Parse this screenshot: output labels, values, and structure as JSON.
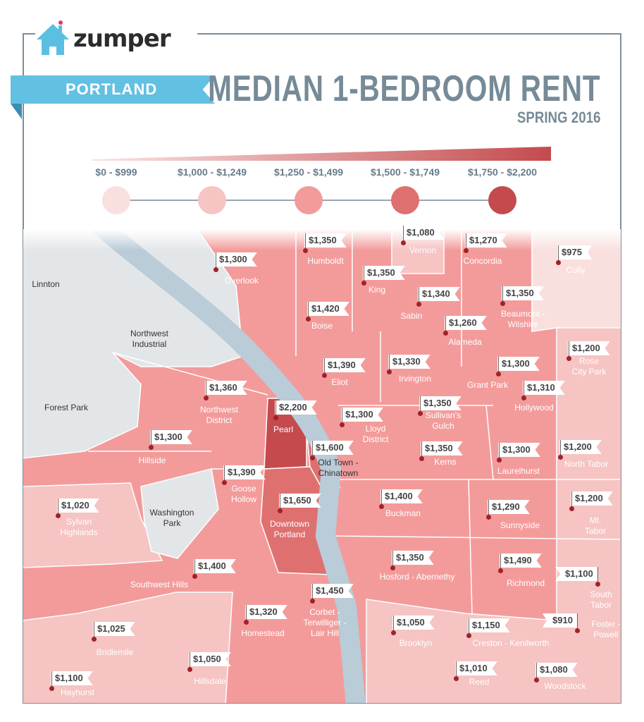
{
  "brand": {
    "name": "zumper"
  },
  "banner": {
    "city": "PORTLAND"
  },
  "header": {
    "title": "MEDIAN 1-BEDROOM RENT",
    "subtitle": "SPRING 2016"
  },
  "legend": [
    {
      "label": "$0 - $999",
      "color": "#f9e0df"
    },
    {
      "label": "$1,000 - $1,249",
      "color": "#f5c4c3"
    },
    {
      "label": "$1,250 - $1,499",
      "color": "#f39b9b"
    },
    {
      "label": "$1,500 - $1,749",
      "color": "#df7070"
    },
    {
      "label": "$1,750 - $2,200",
      "color": "#c44a4d"
    }
  ],
  "areas_without_data": [
    "Linnton",
    "Northwest\nIndustrial",
    "Forest Park",
    "Washington\nPark"
  ],
  "neighborhoods": [
    {
      "name": "Humboldt",
      "rent": "$1,350"
    },
    {
      "name": "Vernon",
      "rent": "$1,080"
    },
    {
      "name": "Concordia",
      "rent": "$1,270"
    },
    {
      "name": "Cully",
      "rent": "$975"
    },
    {
      "name": "Overlook",
      "rent": "$1,300"
    },
    {
      "name": "King",
      "rent": "$1,350"
    },
    {
      "name": "Sabin",
      "rent": "$1,340"
    },
    {
      "name": "Beaumont -\nWilshire",
      "rent": "$1,350"
    },
    {
      "name": "Boise",
      "rent": "$1,420"
    },
    {
      "name": "Alameda",
      "rent": "$1,260"
    },
    {
      "name": "Rose\nCity Park",
      "rent": "$1,200"
    },
    {
      "name": "Eliot",
      "rent": "$1,390"
    },
    {
      "name": "Irvington",
      "rent": "$1,330"
    },
    {
      "name": "Grant Park",
      "rent": "$1,300"
    },
    {
      "name": "Northwest\nDistrict",
      "rent": "$1,360"
    },
    {
      "name": "Hollywood",
      "rent": "$1,310"
    },
    {
      "name": "Pearl",
      "rent": "$2,200"
    },
    {
      "name": "Lloyd\nDistrict",
      "rent": "$1,300"
    },
    {
      "name": "Sullivan's\nGulch",
      "rent": "$1,350"
    },
    {
      "name": "Hillside",
      "rent": "$1,300"
    },
    {
      "name": "Old Town -\nChinatown",
      "rent": "$1,600"
    },
    {
      "name": "Kerns",
      "rent": "$1,350"
    },
    {
      "name": "Laurelhurst",
      "rent": "$1,300"
    },
    {
      "name": "North Tabor",
      "rent": "$1,200"
    },
    {
      "name": "Goose\nHollow",
      "rent": "$1,390"
    },
    {
      "name": "Downtown\nPortland",
      "rent": "$1,650"
    },
    {
      "name": "Sylvan\nHighlands",
      "rent": "$1,020"
    },
    {
      "name": "Buckman",
      "rent": "$1,400"
    },
    {
      "name": "Sunnyside",
      "rent": "$1,290"
    },
    {
      "name": "Mt.\nTabor",
      "rent": "$1,200"
    },
    {
      "name": "Southwest Hills",
      "rent": "$1,400"
    },
    {
      "name": "Hosford - Abernethy",
      "rent": "$1,350"
    },
    {
      "name": "Richmond",
      "rent": "$1,490"
    },
    {
      "name": "South\nTabor",
      "rent": "$1,100"
    },
    {
      "name": "Corbet -\nTerwilliger -\nLair Hill",
      "rent": "$1,450"
    },
    {
      "name": "Homestead",
      "rent": "$1,320"
    },
    {
      "name": "Brooklyn",
      "rent": "$1,050"
    },
    {
      "name": "Creston - Kenilworth",
      "rent": "$1,150"
    },
    {
      "name": "Foster -\nPowell",
      "rent": "$910"
    },
    {
      "name": "Bridlemile",
      "rent": "$1,025"
    },
    {
      "name": "Hillsdale",
      "rent": "$1,050"
    },
    {
      "name": "Reed",
      "rent": "$1,010"
    },
    {
      "name": "Woodstock",
      "rent": "$1,080"
    },
    {
      "name": "Hayhurst",
      "rent": "$1,100"
    }
  ]
}
